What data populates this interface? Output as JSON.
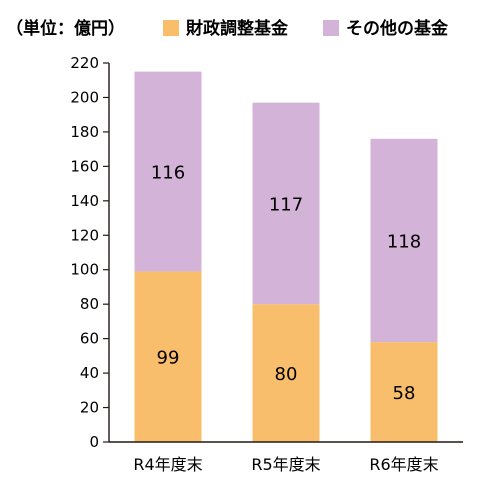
{
  "unit_label": "（単位：億円）",
  "colors": {
    "fiscal_fund": "#F8BE6B",
    "other_fund": "#D4B3D8",
    "axis": "#231815"
  },
  "chart_data": {
    "type": "bar",
    "stacked": true,
    "categories": [
      "R4年度末",
      "R5年度末",
      "R6年度末"
    ],
    "series": [
      {
        "name": "財政調整基金",
        "values": [
          99,
          80,
          58
        ]
      },
      {
        "name": "その他の基金",
        "values": [
          116,
          117,
          118
        ]
      }
    ],
    "ylim": [
      0,
      220
    ],
    "yticks": [
      "0",
      "20",
      "40",
      "60",
      "80",
      "100",
      "120",
      "140",
      "160",
      "180",
      "200",
      "220"
    ],
    "legend_position": "top",
    "grid": false
  }
}
